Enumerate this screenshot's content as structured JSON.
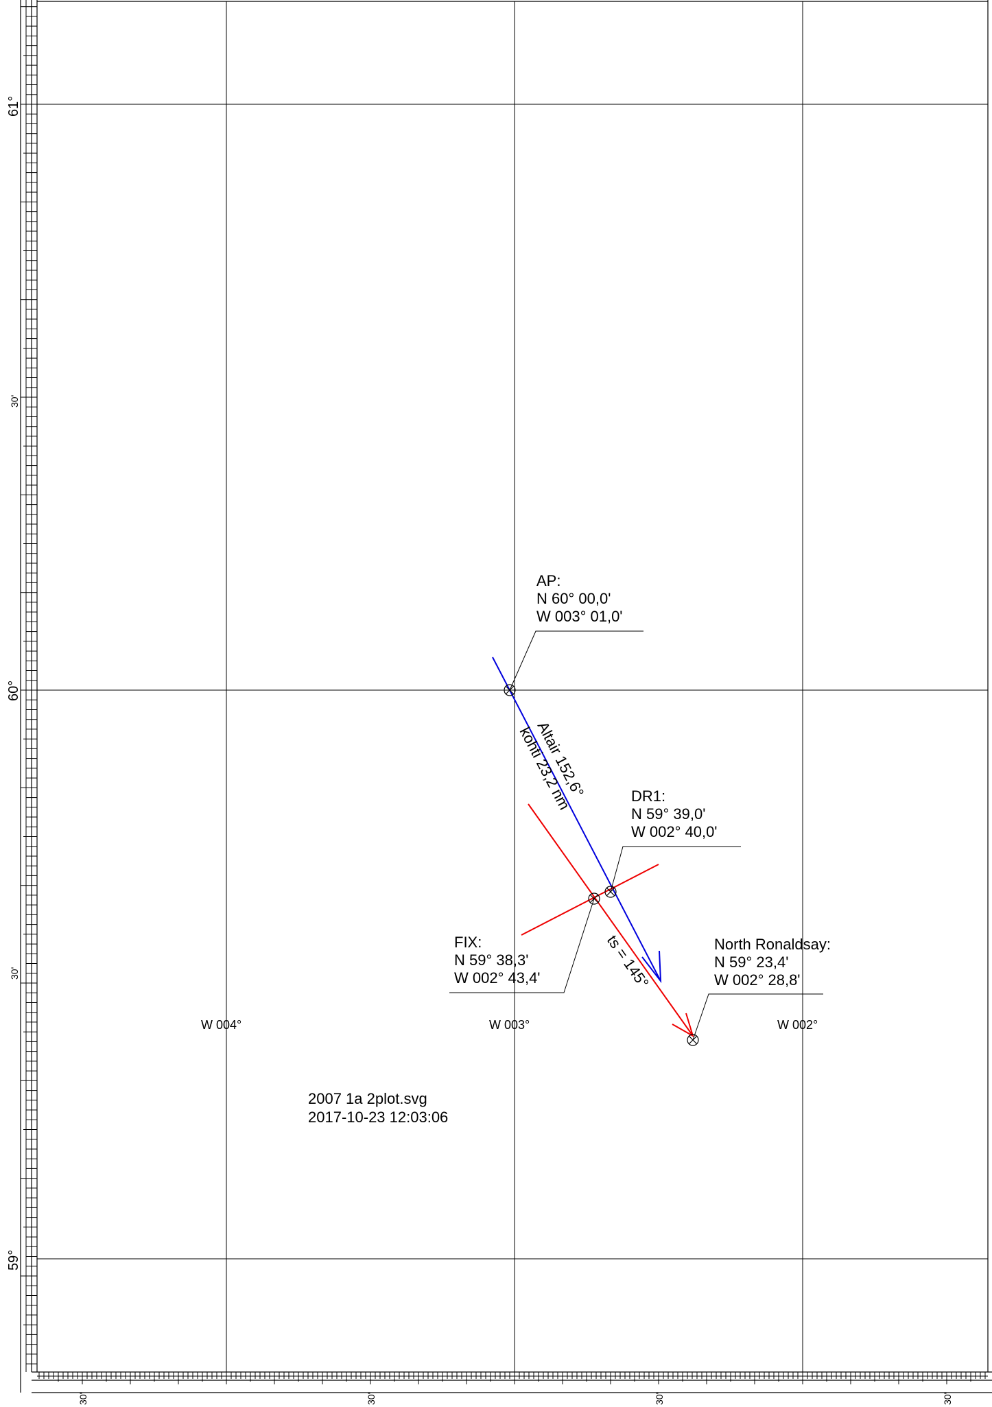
{
  "latitude_labels": {
    "lat61": "61°",
    "lat60": "60°",
    "lat59": "59°",
    "min30_a": "30'",
    "min30_b": "30'"
  },
  "longitude_labels": {
    "w004": "W 004°",
    "w003": "W 003°",
    "w002": "W 002°"
  },
  "bottom_minute_labels": [
    "30'",
    "30'",
    "30'",
    "30'"
  ],
  "ap": {
    "title": "AP:",
    "lat": "N 60° 00,0'",
    "lon": "W 003° 01,0'"
  },
  "dr1": {
    "title": "DR1:",
    "lat": "N 59° 39,0'",
    "lon": "W 002° 40,0'"
  },
  "fix": {
    "title": "FIX:",
    "lat": "N 59° 38,3'",
    "lon": "W 002° 43,4'"
  },
  "north_ronaldsay": {
    "title": "North Ronaldsay:",
    "lat": "N 59° 23,4'",
    "lon": "W 002° 28,8'"
  },
  "altair_line": {
    "label": "Altair 152,6°",
    "sublabel": "kohti 23,2 nm",
    "color": "#0000dd"
  },
  "track_line": {
    "label": "ts = 145°",
    "color": "#ee0000"
  },
  "plot_info": {
    "filename": "2007 1a 2plot.svg",
    "timestamp": "2017-10-23 12:03:06"
  }
}
